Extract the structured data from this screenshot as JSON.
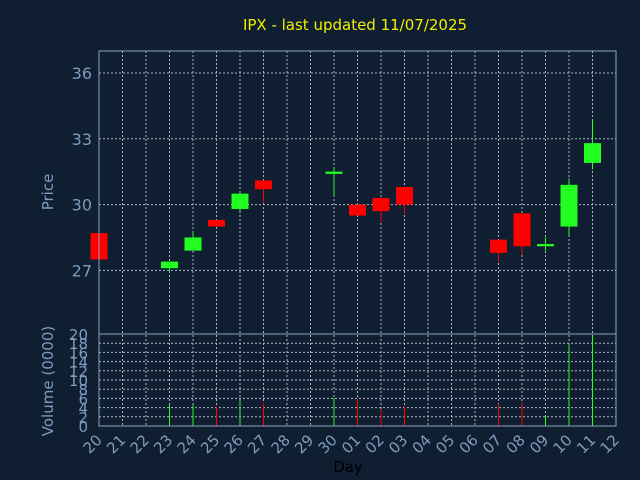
{
  "chart_data": {
    "type": "candlestick",
    "title": "IPX - last updated 11/07/2025",
    "xlabel": "Day",
    "price_ylabel": "Price",
    "volume_ylabel": "Volume (0000)",
    "price_yticks": [
      27,
      30,
      33,
      36
    ],
    "price_ylim": [
      24.1,
      37
    ],
    "volume_yticks": [
      0,
      2,
      4,
      6,
      8,
      10,
      12,
      14,
      16,
      18,
      20
    ],
    "volume_ylim": [
      0,
      20
    ],
    "grid": true,
    "colors": {
      "background": "#0f1e30",
      "title": "#f0f000",
      "axis_text": "#7d9cc0",
      "frame": "#8ea4c2",
      "grid": "#aab6c6",
      "up": "#22ff22",
      "down": "#ff0000"
    },
    "x_labels": [
      "20",
      "21",
      "22",
      "23",
      "24",
      "25",
      "26",
      "27",
      "28",
      "29",
      "30",
      "01",
      "02",
      "03",
      "04",
      "05",
      "06",
      "07",
      "08",
      "09",
      "10",
      "11",
      "12"
    ],
    "candles": [
      {
        "day": "20",
        "open": 28.7,
        "high": 28.7,
        "low": 27.5,
        "close": 27.5,
        "volume": 0
      },
      {
        "day": "23",
        "open": 27.1,
        "high": 27.4,
        "low": 26.9,
        "close": 27.4,
        "volume": 4.7
      },
      {
        "day": "24",
        "open": 27.9,
        "high": 28.8,
        "low": 27.9,
        "close": 28.5,
        "volume": 4.5
      },
      {
        "day": "25",
        "open": 29.3,
        "high": 29.3,
        "low": 29.0,
        "close": 29.0,
        "volume": 4.2
      },
      {
        "day": "26",
        "open": 29.8,
        "high": 30.6,
        "low": 29.7,
        "close": 30.5,
        "volume": 5.7
      },
      {
        "day": "27",
        "open": 31.1,
        "high": 31.1,
        "low": 30.1,
        "close": 30.7,
        "volume": 5.0
      },
      {
        "day": "30",
        "open": 31.4,
        "high": 31.7,
        "low": 30.4,
        "close": 31.5,
        "volume": 6.1
      },
      {
        "day": "01",
        "open": 30.0,
        "high": 30.0,
        "low": 29.5,
        "close": 29.5,
        "volume": 5.9
      },
      {
        "day": "02",
        "open": 30.3,
        "high": 30.3,
        "low": 29.2,
        "close": 29.7,
        "volume": 3.6
      },
      {
        "day": "03",
        "open": 30.8,
        "high": 30.8,
        "low": 29.6,
        "close": 30.0,
        "volume": 4.3
      },
      {
        "day": "07",
        "open": 28.4,
        "high": 28.4,
        "low": 27.4,
        "close": 27.8,
        "volume": 4.8
      },
      {
        "day": "08",
        "open": 29.6,
        "high": 29.6,
        "low": 27.7,
        "close": 28.1,
        "volume": 5.1
      },
      {
        "day": "09",
        "open": 28.1,
        "high": 28.5,
        "low": 27.9,
        "close": 28.2,
        "volume": 2.3
      },
      {
        "day": "10",
        "open": 29.0,
        "high": 31.2,
        "low": 28.6,
        "close": 30.9,
        "volume": 17.5
      },
      {
        "day": "11",
        "open": 31.9,
        "high": 33.9,
        "low": 31.6,
        "close": 32.8,
        "volume": 19.6
      }
    ]
  }
}
